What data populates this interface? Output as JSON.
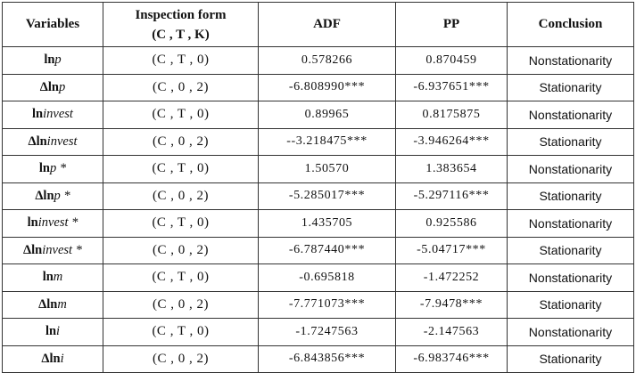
{
  "table": {
    "headers": {
      "variables": "Variables",
      "inspection_form_line1": "Inspection form",
      "inspection_form_line2": "(C , T , K)",
      "adf": "ADF",
      "pp": "PP",
      "conclusion": "Conclusion"
    },
    "rows": [
      {
        "var_prefix": "ln",
        "var_sym": "p",
        "form": "(C , T , 0)",
        "adf": "0.578266",
        "pp": "0.870459",
        "conclusion": "Nonstationarity"
      },
      {
        "var_prefix": "Δln",
        "var_sym": "p",
        "form": "(C , 0 , 2)",
        "adf": "-6.808990***",
        "pp": "-6.937651***",
        "conclusion": "Stationarity"
      },
      {
        "var_prefix": "ln",
        "var_sym": "invest",
        "form": "(C , T , 0)",
        "adf": "0.89965",
        "pp": "0.8175875",
        "conclusion": "Nonstationarity"
      },
      {
        "var_prefix": "Δln",
        "var_sym": "invest",
        "form": "(C , 0 , 2)",
        "adf": "--3.218475***",
        "pp": "-3.946264***",
        "conclusion": "Stationarity"
      },
      {
        "var_prefix": "ln",
        "var_sym": "p *",
        "form": "(C , T , 0)",
        "adf": "1.50570",
        "pp": "1.383654",
        "conclusion": "Nonstationarity"
      },
      {
        "var_prefix": "Δln",
        "var_sym": "p *",
        "form": "(C , 0 , 2)",
        "adf": "-5.285017***",
        "pp": "-5.297116***",
        "conclusion": "Stationarity"
      },
      {
        "var_prefix": "ln",
        "var_sym": "invest *",
        "form": "(C , T , 0)",
        "adf": "1.435705",
        "pp": "0.925586",
        "conclusion": "Nonstationarity"
      },
      {
        "var_prefix": "Δln",
        "var_sym": "invest *",
        "form": "(C , 0 , 2)",
        "adf": "-6.787440***",
        "pp": "-5.04717***",
        "conclusion": "Stationarity"
      },
      {
        "var_prefix": "ln",
        "var_sym": "m",
        "form": "(C , T , 0)",
        "adf": "-0.695818",
        "pp": "-1.472252",
        "conclusion": "Nonstationarity"
      },
      {
        "var_prefix": "Δln",
        "var_sym": "m",
        "form": "(C , 0 , 2)",
        "adf": "-7.771073***",
        "pp": "-7.9478***",
        "conclusion": "Stationarity"
      },
      {
        "var_prefix": "ln",
        "var_sym": "i",
        "form": "(C , T , 0)",
        "adf": "-1.7247563",
        "pp": "-2.147563",
        "conclusion": "Nonstationarity"
      },
      {
        "var_prefix": "Δln",
        "var_sym": "i",
        "form": "(C , 0 , 2)",
        "adf": "-6.843856***",
        "pp": "-6.983746***",
        "conclusion": "Stationarity"
      }
    ]
  }
}
